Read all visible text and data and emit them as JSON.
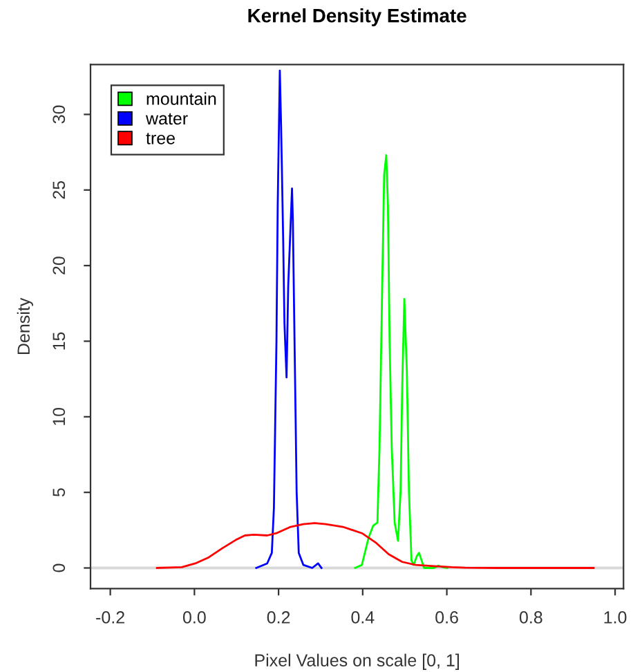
{
  "chart_data": {
    "type": "line",
    "title": "Kernel Density Estimate",
    "xlabel": "Pixel Values on scale [0, 1]",
    "ylabel": "Density",
    "xlim": [
      -0.247,
      1.02
    ],
    "xticks": [
      {
        "value": -0.2,
        "label": "-0.2"
      },
      {
        "value": 0,
        "label": "0.0"
      },
      {
        "value": 0.2,
        "label": "0.2"
      },
      {
        "value": 0.4,
        "label": "0.4"
      },
      {
        "value": 0.6,
        "label": "0.6"
      },
      {
        "value": 0.8,
        "label": "0.8"
      },
      {
        "value": 1.0,
        "label": "1.0"
      }
    ],
    "ylim": [
      -1.37,
      33.3
    ],
    "yticks": [
      0,
      5,
      10,
      15,
      20,
      25,
      30
    ],
    "legend": "top left",
    "grid": false,
    "marker": "none",
    "line_style": "solid",
    "ref_lines": [
      {
        "axis": "y",
        "value": 0,
        "color": "#d9d9d9"
      }
    ],
    "series": [
      {
        "name": "mountain",
        "color": "#00ff00",
        "x": [
          0.382,
          0.398,
          0.414,
          0.425,
          0.435,
          0.44,
          0.446,
          0.451,
          0.456,
          0.46,
          0.464,
          0.469,
          0.476,
          0.484,
          0.49,
          0.494,
          0.499,
          0.505,
          0.51,
          0.516,
          0.521,
          0.529,
          0.534,
          0.54,
          0.546,
          0.569,
          0.58,
          0.59,
          0.601
        ],
        "values": [
          0,
          0.2,
          2,
          2.8,
          3,
          8,
          18,
          26,
          27.3,
          24,
          15,
          8,
          3,
          1.8,
          5,
          12,
          17.8,
          13,
          5,
          0.5,
          0.2,
          0.8,
          1.0,
          0.5,
          0,
          0,
          0.15,
          0.05,
          0
        ]
      },
      {
        "name": "water",
        "color": "#0000ff",
        "x": [
          0.147,
          0.173,
          0.184,
          0.189,
          0.195,
          0.198,
          0.203,
          0.206,
          0.211,
          0.214,
          0.219,
          0.223,
          0.232,
          0.234,
          0.238,
          0.243,
          0.248,
          0.259,
          0.28,
          0.294,
          0.302
        ],
        "values": [
          0,
          0.3,
          1,
          4,
          15,
          24,
          32.9,
          29.3,
          21.7,
          16.2,
          12.6,
          18.7,
          25.1,
          23,
          15,
          5,
          1,
          0.2,
          0,
          0.3,
          0
        ]
      },
      {
        "name": "tree",
        "color": "#ff0000",
        "x": [
          -0.089,
          -0.03,
          0.002,
          0.034,
          0.066,
          0.098,
          0.12,
          0.141,
          0.173,
          0.195,
          0.227,
          0.259,
          0.286,
          0.312,
          0.355,
          0.398,
          0.43,
          0.462,
          0.494,
          0.526,
          0.569,
          0.612,
          0.644,
          0.719,
          0.949
        ],
        "values": [
          0,
          0.05,
          0.3,
          0.7,
          1.3,
          1.85,
          2.15,
          2.2,
          2.15,
          2.3,
          2.7,
          2.9,
          2.97,
          2.9,
          2.7,
          2.3,
          1.7,
          0.9,
          0.4,
          0.2,
          0.12,
          0.05,
          0.02,
          0,
          0
        ]
      }
    ]
  }
}
